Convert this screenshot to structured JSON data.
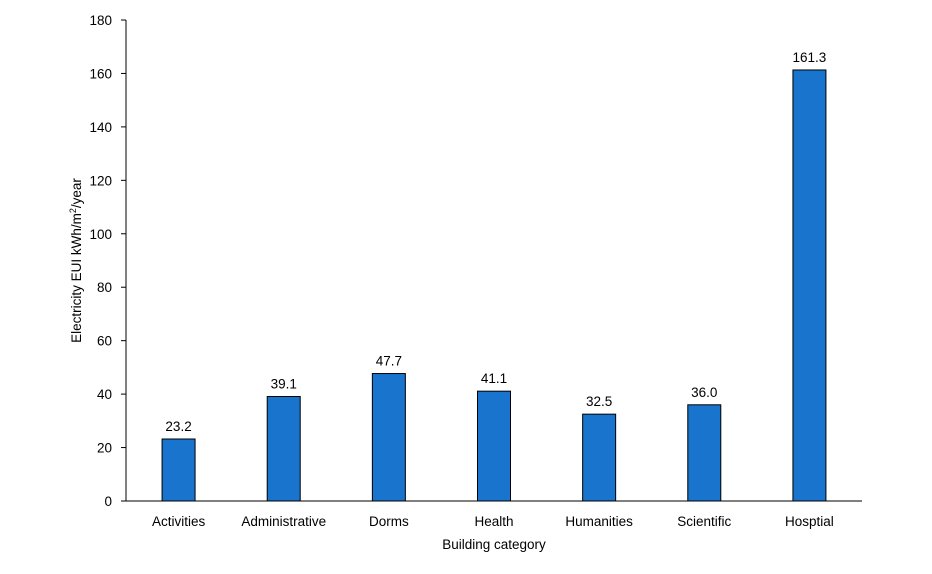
{
  "chart_data": {
    "type": "bar",
    "title": "",
    "xlabel": "Building category",
    "ylabel_main": "Electricity EUI kWh/m",
    "ylabel_sup": "2",
    "ylabel_tail": "/year",
    "ylim": [
      0,
      180
    ],
    "yticks": [
      0,
      20,
      40,
      60,
      80,
      100,
      120,
      140,
      160,
      180
    ],
    "grid": false,
    "legend": "none",
    "categories": [
      "Activities",
      "Administrative",
      "Dorms",
      "Health",
      "Humanities",
      "Scientific",
      "Hosptial"
    ],
    "values": [
      23.2,
      39.1,
      47.7,
      41.1,
      32.5,
      36.0,
      161.3
    ],
    "value_labels": [
      "23.2",
      "39.1",
      "47.7",
      "41.1",
      "32.5",
      "36.0",
      "161.3"
    ],
    "bar_color": "#1874CD",
    "bar_edge_color": "#000000"
  }
}
